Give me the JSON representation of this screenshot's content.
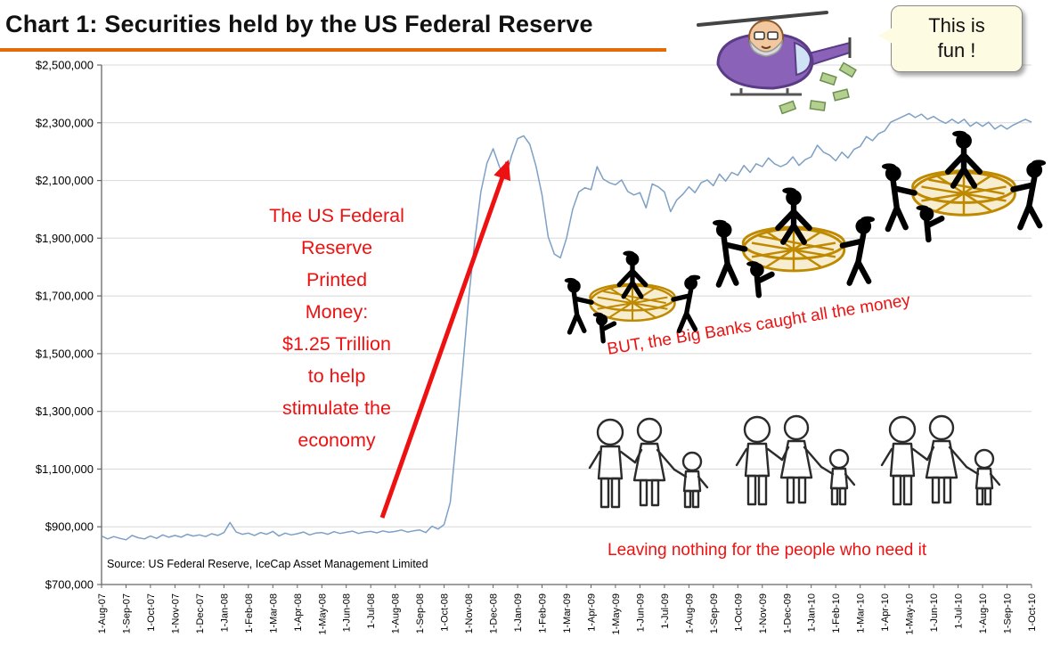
{
  "title": "Chart 1: Securities held by the US Federal Reserve",
  "colors": {
    "underline": "#E36C09",
    "red": "#EE1111",
    "line": "#7DA0C4",
    "bubble_bg": "#FDFBE2"
  },
  "speech_bubble": {
    "lines": [
      "This is",
      "fun !"
    ]
  },
  "annotations": {
    "printed_money": "The US Federal\nReserve\nPrinted\nMoney:\n$1.25 Trillion\nto help\nstimulate the\neconomy",
    "big_banks": "BUT, the Big Banks caught all the money",
    "people": "Leaving nothing for the people who need it",
    "source": "Source: US Federal Reserve, IceCap Asset Management Limited"
  },
  "figures": {
    "helicopter": "cartoon of Fed chairman flying a helicopter dropping money",
    "baskets": "black silhouette figures catching money in gold net baskets (three groups, rising left to right)",
    "families": "hand-drawn stick-figure families holding hands (three groups)"
  },
  "chart_data": {
    "type": "line",
    "title": "Chart 1: Securities held by the US Federal Reserve",
    "xlabel": "",
    "ylabel": "",
    "ylim": [
      700000,
      2500000
    ],
    "ytick_step": 200000,
    "grid": "horizontal",
    "legend": "none",
    "yticks": [
      {
        "value": 2500000,
        "label": "$2,500,000"
      },
      {
        "value": 2300000,
        "label": "$2,300,000"
      },
      {
        "value": 2100000,
        "label": "$2,100,000"
      },
      {
        "value": 1900000,
        "label": "$1,900,000"
      },
      {
        "value": 1700000,
        "label": "$1,700,000"
      },
      {
        "value": 1500000,
        "label": "$1,500,000"
      },
      {
        "value": 1300000,
        "label": "$1,300,000"
      },
      {
        "value": 1100000,
        "label": "$1,100,000"
      },
      {
        "value": 900000,
        "label": "$900,000"
      },
      {
        "value": 700000,
        "label": "$700,000"
      }
    ],
    "x_labels": [
      "1-Aug-07",
      "1-Sep-07",
      "1-Oct-07",
      "1-Nov-07",
      "1-Dec-07",
      "1-Jan-08",
      "1-Feb-08",
      "1-Mar-08",
      "1-Apr-08",
      "1-May-08",
      "1-Jun-08",
      "1-Jul-08",
      "1-Aug-08",
      "1-Sep-08",
      "1-Oct-08",
      "1-Nov-08",
      "1-Dec-08",
      "1-Jan-09",
      "1-Feb-09",
      "1-Mar-09",
      "1-Apr-09",
      "1-May-09",
      "1-Jun-09",
      "1-Jul-09",
      "1-Aug-09",
      "1-Sep-09",
      "1-Oct-09",
      "1-Nov-09",
      "1-Dec-09",
      "1-Jan-10",
      "1-Feb-10",
      "1-Mar-10",
      "1-Apr-10",
      "1-May-10",
      "1-Jun-10",
      "1-Jul-10",
      "1-Aug-10",
      "1-Sep-10",
      "1-Oct-10"
    ],
    "series": [
      {
        "name": "Securities held",
        "color": "#7DA0C4",
        "frequency": "weekly",
        "values": [
          868000,
          858000,
          866000,
          860000,
          855000,
          870000,
          862000,
          858000,
          868000,
          860000,
          872000,
          864000,
          870000,
          864000,
          874000,
          868000,
          872000,
          866000,
          876000,
          870000,
          880000,
          915000,
          882000,
          874000,
          878000,
          870000,
          880000,
          874000,
          884000,
          868000,
          878000,
          872000,
          876000,
          882000,
          872000,
          878000,
          880000,
          874000,
          883000,
          877000,
          881000,
          885000,
          877000,
          882000,
          884000,
          879000,
          886000,
          881000,
          884000,
          889000,
          882000,
          886000,
          889000,
          880000,
          902000,
          892000,
          908000,
          985000,
          1210000,
          1440000,
          1690000,
          1890000,
          2060000,
          2160000,
          2210000,
          2150000,
          2105000,
          2185000,
          2245000,
          2255000,
          2225000,
          2150000,
          2050000,
          1905000,
          1845000,
          1832000,
          1900000,
          2000000,
          2060000,
          2075000,
          2068000,
          2148000,
          2105000,
          2092000,
          2085000,
          2102000,
          2062000,
          2050000,
          2058000,
          2005000,
          2088000,
          2078000,
          2060000,
          1992000,
          2032000,
          2052000,
          2078000,
          2058000,
          2092000,
          2102000,
          2082000,
          2122000,
          2098000,
          2128000,
          2118000,
          2152000,
          2128000,
          2158000,
          2148000,
          2178000,
          2158000,
          2148000,
          2158000,
          2182000,
          2152000,
          2172000,
          2182000,
          2222000,
          2198000,
          2188000,
          2168000,
          2198000,
          2178000,
          2208000,
          2218000,
          2252000,
          2238000,
          2262000,
          2272000,
          2302000,
          2312000,
          2322000,
          2332000,
          2318000,
          2330000,
          2312000,
          2322000,
          2308000,
          2298000,
          2312000,
          2298000,
          2312000,
          2288000,
          2302000,
          2288000,
          2302000,
          2278000,
          2292000,
          2278000,
          2292000,
          2302000,
          2312000,
          2302000
        ]
      }
    ]
  }
}
